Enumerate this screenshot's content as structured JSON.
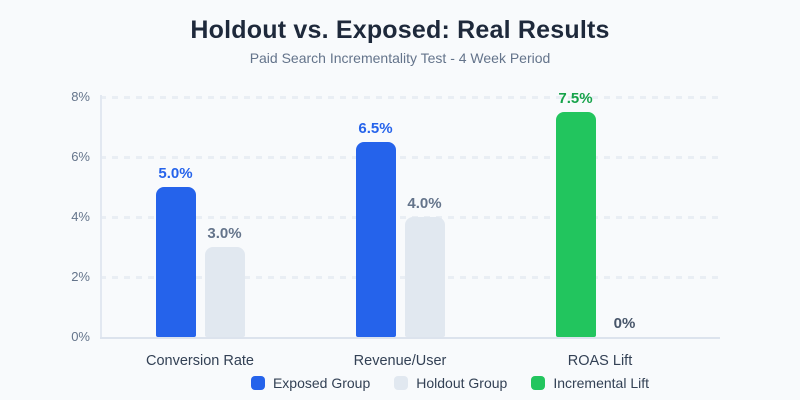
{
  "header": {
    "title": "Holdout vs. Exposed: Real Results",
    "subtitle": "Paid Search Incrementality Test - 4 Week Period"
  },
  "chart_data": {
    "type": "bar",
    "title": "Holdout vs. Exposed: Real Results",
    "subtitle": "Paid Search Incrementality Test - 4 Week Period",
    "categories": [
      "Conversion Rate",
      "Revenue/User",
      "ROAS Lift"
    ],
    "series": [
      {
        "name": "Exposed Group",
        "values": [
          5.0,
          6.5,
          null
        ]
      },
      {
        "name": "Holdout Group",
        "values": [
          3.0,
          4.0,
          0
        ]
      },
      {
        "name": "Incremental Lift",
        "values": [
          null,
          null,
          7.5
        ]
      }
    ],
    "groups": [
      {
        "category": "Conversion Rate",
        "bars": [
          {
            "series": "Exposed Group",
            "value": 5.0,
            "label": "5.0%",
            "color": "#2563eb",
            "label_color": "#2563eb"
          },
          {
            "series": "Holdout Group",
            "value": 3.0,
            "label": "3.0%",
            "color": "#e1e8f0",
            "label_color": "#64748b"
          }
        ]
      },
      {
        "category": "Revenue/User",
        "bars": [
          {
            "series": "Exposed Group",
            "value": 6.5,
            "label": "6.5%",
            "color": "#2563eb",
            "label_color": "#2563eb"
          },
          {
            "series": "Holdout Group",
            "value": 4.0,
            "label": "4.0%",
            "color": "#e1e8f0",
            "label_color": "#64748b"
          }
        ]
      },
      {
        "category": "ROAS Lift",
        "bars": [
          {
            "series": "Incremental Lift",
            "value": 7.5,
            "label": "7.5%",
            "color": "#22c55e",
            "label_color": "#16a34a"
          },
          {
            "series": "Holdout Group",
            "value": 0,
            "label": "0%",
            "color": "#e1e8f0",
            "label_color": "#475569"
          }
        ]
      }
    ],
    "ylim": [
      0,
      8
    ],
    "yticks": {
      "values": [
        0,
        2,
        4,
        6,
        8
      ],
      "labels": [
        "0%",
        "2%",
        "4%",
        "6%",
        "8%"
      ]
    },
    "xlabel": "",
    "ylabel": "",
    "grid": "horizontal-dashed",
    "legend_position": "bottom",
    "legend": [
      {
        "label": "Exposed Group",
        "color": "#2563eb"
      },
      {
        "label": "Holdout Group",
        "color": "#e1e8f0"
      },
      {
        "label": "Incremental Lift",
        "color": "#22c55e"
      }
    ],
    "colors": {
      "background": "#f8fafc",
      "title": "#1e293b",
      "subtitle": "#64748b",
      "tick_text": "#64748b",
      "category_text": "#334155",
      "legend_text": "#334155",
      "gridline": "#e9eef4",
      "axis_line": "#dce3ed"
    }
  }
}
